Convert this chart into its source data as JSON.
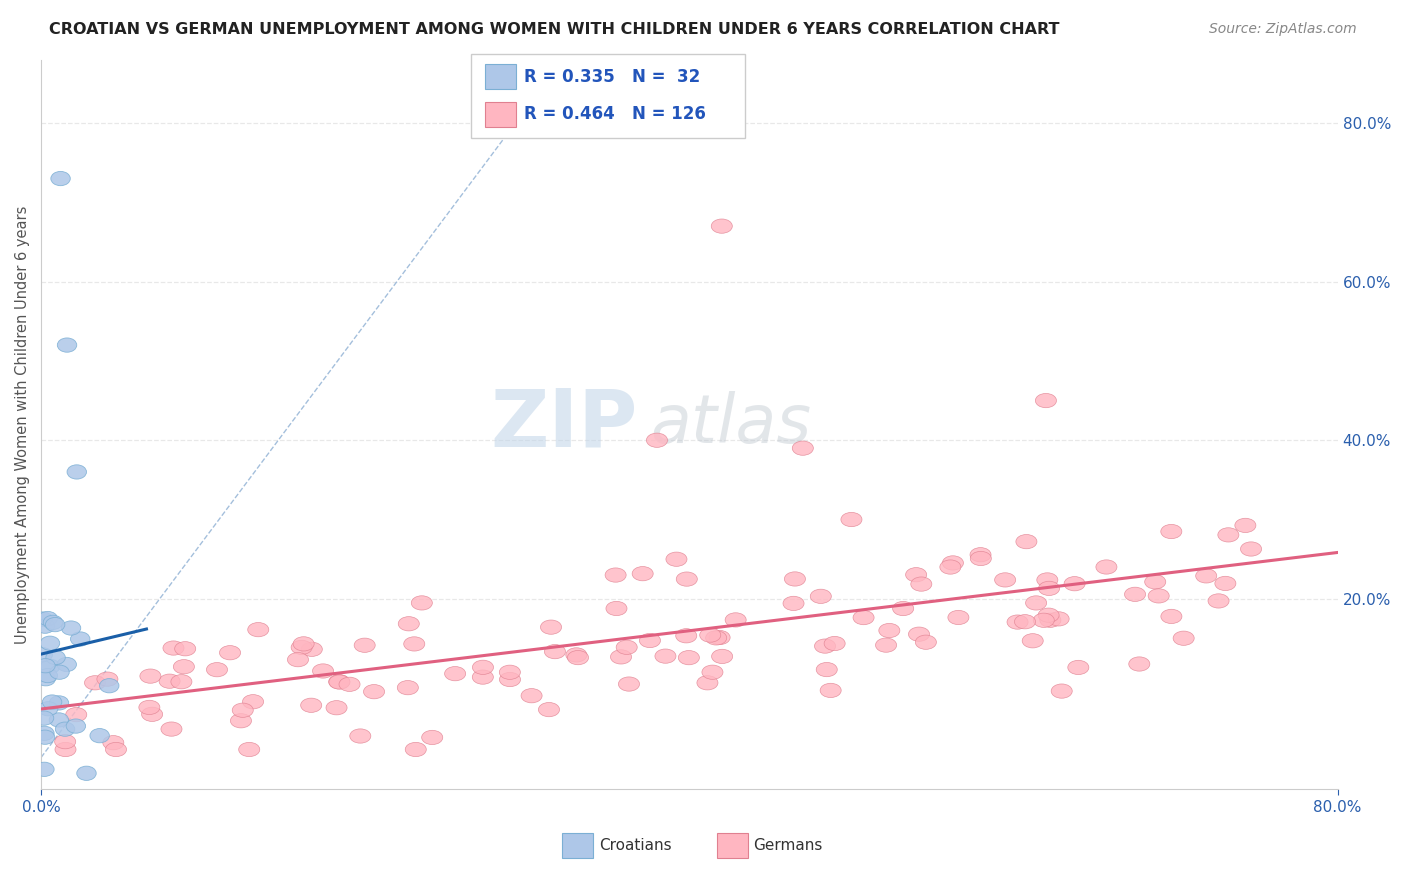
{
  "title": "CROATIAN VS GERMAN UNEMPLOYMENT AMONG WOMEN WITH CHILDREN UNDER 6 YEARS CORRELATION CHART",
  "source": "Source: ZipAtlas.com",
  "ylabel": "Unemployment Among Women with Children Under 6 years",
  "croatian_R": 0.335,
  "croatian_N": 32,
  "german_R": 0.464,
  "german_N": 126,
  "legend_blue_fill": "#aec7e8",
  "legend_blue_edge": "#7bafd4",
  "legend_pink_fill": "#ffb6c1",
  "legend_pink_edge": "#e08090",
  "blue_trend_color": "#1a5fa8",
  "pink_trend_color": "#e06080",
  "dashed_line_color": "#9ab8d8",
  "watermark_zip": "#c0d4e8",
  "watermark_atlas": "#c0c8d0",
  "grid_color": "#e8e8e8",
  "right_tick_color": "#2b5fad",
  "xticklabel_color": "#2b5fad",
  "ylabel_color": "#555555",
  "title_color": "#222222",
  "source_color": "#888888",
  "xlim": [
    0.0,
    0.8
  ],
  "ylim": [
    -0.04,
    0.88
  ],
  "right_yticks": [
    0.2,
    0.4,
    0.6,
    0.8
  ],
  "bottom_legend_items": [
    {
      "label": "Croatians",
      "fill": "#aec7e8",
      "edge": "#7bafd4"
    },
    {
      "label": "Germans",
      "fill": "#ffb6c1",
      "edge": "#e08090"
    }
  ]
}
